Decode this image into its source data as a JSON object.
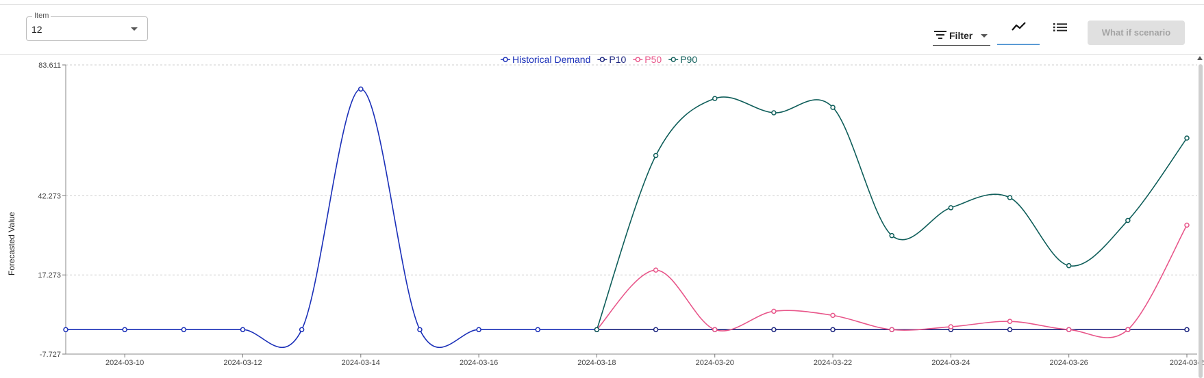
{
  "toolbar": {
    "item_select": {
      "label": "Item",
      "value": "12"
    },
    "filter_label": "Filter",
    "what_if_label": "What if scenario",
    "chart_view_icon": "line-chart-icon",
    "list_view_icon": "list-icon"
  },
  "colors": {
    "historical": "#1a2fb8",
    "p10": "#1a237e",
    "p50": "#e8568a",
    "p90": "#0f5e5a",
    "grid": "#cfcfcf"
  },
  "chart_data": {
    "type": "line",
    "ylabel": "Forecasted Value",
    "yticks": [
      "83.611",
      "42.273",
      "17.273",
      "-7.727"
    ],
    "ylim": [
      -7.727,
      83.611
    ],
    "grid": true,
    "legend_position": "top-center",
    "x": [
      "2024-03-09",
      "2024-03-10",
      "2024-03-11",
      "2024-03-12",
      "2024-03-13",
      "2024-03-14",
      "2024-03-15",
      "2024-03-16",
      "2024-03-17",
      "2024-03-18",
      "2024-03-19",
      "2024-03-20",
      "2024-03-21",
      "2024-03-22",
      "2024-03-23",
      "2024-03-24",
      "2024-03-25",
      "2024-03-26",
      "2024-03-27",
      "2024-03-28"
    ],
    "xtick_labels": [
      "2024-03-10",
      "2024-03-12",
      "2024-03-14",
      "2024-03-16",
      "2024-03-18",
      "2024-03-20",
      "2024-03-22",
      "2024-03-24",
      "2024-03-26",
      "2024-03-2"
    ],
    "series": [
      {
        "name": "Historical Demand",
        "color_key": "historical",
        "values": [
          0,
          0,
          0,
          0,
          0,
          76,
          0,
          0,
          0,
          0,
          null,
          null,
          null,
          null,
          null,
          null,
          null,
          null,
          null,
          null
        ]
      },
      {
        "name": "P10",
        "color_key": "p10",
        "values": [
          null,
          null,
          null,
          null,
          null,
          null,
          null,
          null,
          null,
          0,
          0,
          0,
          0,
          0,
          0,
          0,
          0,
          0,
          0,
          0
        ]
      },
      {
        "name": "P50",
        "color_key": "p50",
        "values": [
          null,
          null,
          null,
          null,
          null,
          null,
          null,
          null,
          null,
          0,
          18.8,
          0,
          5.8,
          4.5,
          0,
          0.9,
          2.6,
          0,
          0,
          33
        ]
      },
      {
        "name": "P90",
        "color_key": "p90",
        "values": [
          null,
          null,
          null,
          null,
          null,
          null,
          null,
          null,
          null,
          0,
          55,
          73,
          68.5,
          70.2,
          29.7,
          38.5,
          41.7,
          20.2,
          34.5,
          60.5
        ]
      }
    ]
  }
}
